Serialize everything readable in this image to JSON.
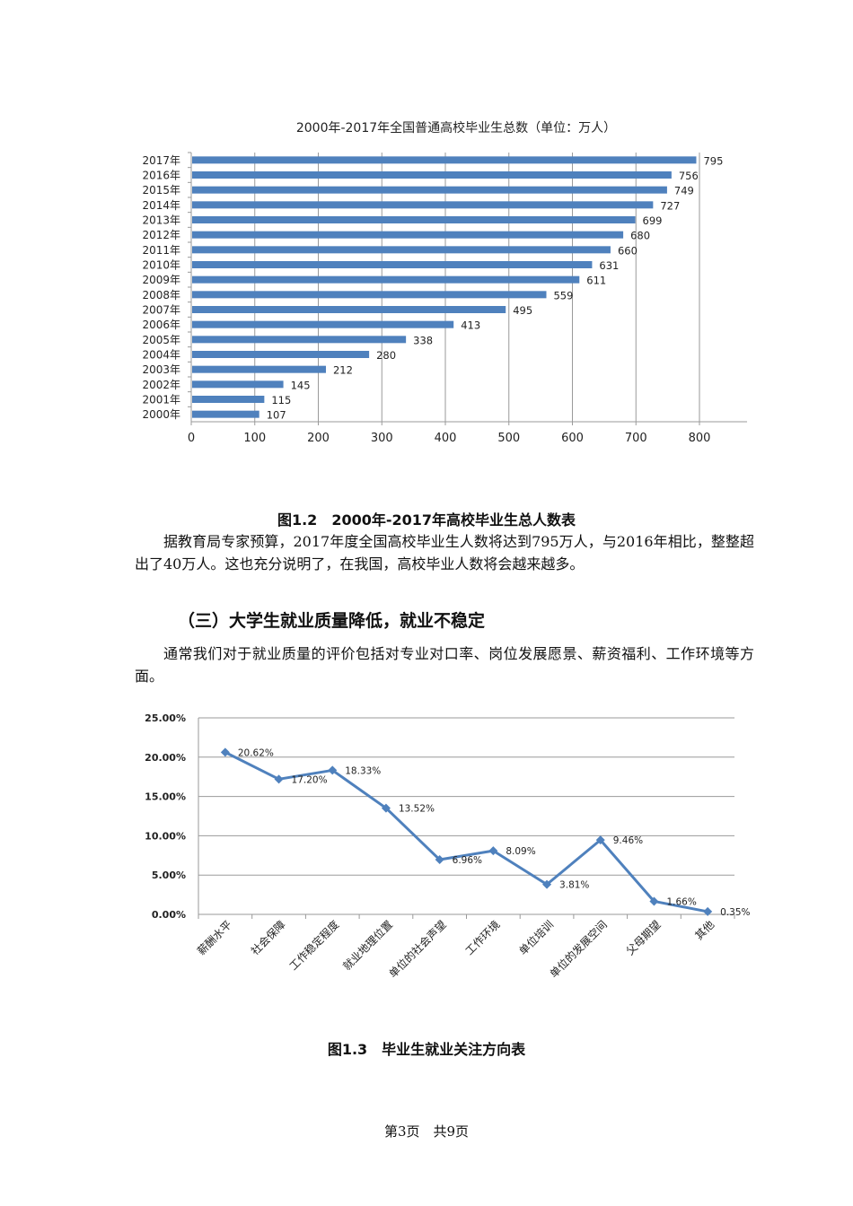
{
  "figure_1_2": {
    "caption": "图1.2　2000年-2017年高校毕业生总人数表"
  },
  "paragraph_1": "据教育局专家预算，2017年度全国高校毕业生人数将达到795万人，与2016年相比，整整超出了40万人。这也充分说明了，在我国，高校毕业人数将会越来越多。",
  "section_heading": "（三）大学生就业质量降低，就业不稳定",
  "paragraph_2": "通常我们对于就业质量的评价包括对专业对口率、岗位发展愿景、薪资福利、工作环境等方面。",
  "figure_1_3": {
    "caption": "图1.3　毕业生就业关注方向表"
  },
  "footer": {
    "page_label": "第3页　共9页"
  },
  "colors": {
    "series": "#4f81bd",
    "grid": "#9a9a9a"
  },
  "chart_data": [
    {
      "type": "bar",
      "orientation": "horizontal",
      "title": "2000年-2017年全国普通高校毕业生总数（单位：万人）",
      "categories": [
        "2017年",
        "2016年",
        "2015年",
        "2014年",
        "2013年",
        "2012年",
        "2011年",
        "2010年",
        "2009年",
        "2008年",
        "2007年",
        "2006年",
        "2005年",
        "2004年",
        "2003年",
        "2002年",
        "2001年",
        "2000年"
      ],
      "values": [
        795,
        756,
        749,
        727,
        699,
        680,
        660,
        631,
        611,
        559,
        495,
        413,
        338,
        280,
        212,
        145,
        115,
        107
      ],
      "xlabel": "",
      "ylabel": "",
      "xlim": [
        0,
        800
      ],
      "xticks": [
        "0",
        "100",
        "200",
        "300",
        "400",
        "500",
        "600",
        "700",
        "800"
      ],
      "grid": true,
      "data_labels": true,
      "legend": "none"
    },
    {
      "type": "line",
      "title": "",
      "categories": [
        "薪酬水平",
        "社会保障",
        "工作稳定程度",
        "就业地理位置",
        "单位的社会声望",
        "工作环境",
        "单位培训",
        "单位的发展空间",
        "父母期望",
        "其他"
      ],
      "values": [
        20.62,
        17.2,
        18.33,
        13.52,
        6.96,
        8.09,
        3.81,
        9.46,
        1.66,
        0.35
      ],
      "value_labels": [
        "20.62%",
        "17.20%",
        "18.33%",
        "13.52%",
        "6.96%",
        "8.09%",
        "3.81%",
        "9.46%",
        "1.66%",
        "0.35%"
      ],
      "xlabel": "",
      "ylabel": "",
      "ylim": [
        0,
        25
      ],
      "yticks": [
        "0.00%",
        "5.00%",
        "10.00%",
        "15.00%",
        "20.00%",
        "25.00%"
      ],
      "marker": "diamond",
      "grid": true,
      "legend": "none"
    }
  ]
}
